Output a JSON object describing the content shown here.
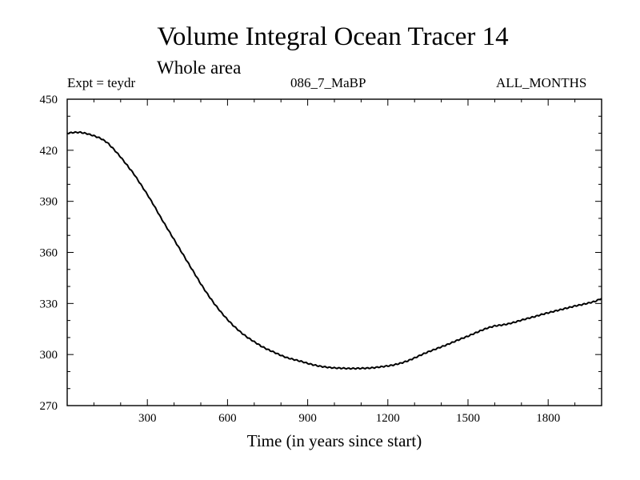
{
  "header": {
    "title": "Volume Integral Ocean Tracer 14",
    "subtitle": "Whole area",
    "expt": "Expt = teydr",
    "run_id": "086_7_MaBP",
    "season": "ALL_MONTHS"
  },
  "chart_data": {
    "type": "line",
    "title": "Volume Integral Ocean Tracer 14",
    "subtitle": "Whole area",
    "xlabel": "Time (in years since start)",
    "ylabel": "",
    "xlim": [
      0,
      2000
    ],
    "ylim": [
      270,
      450
    ],
    "x_ticks": [
      300,
      600,
      900,
      1200,
      1500,
      1800
    ],
    "y_ticks": [
      270,
      300,
      330,
      360,
      390,
      420,
      450
    ],
    "x_tick_labels": [
      "300",
      "600",
      "900",
      "1200",
      "1500",
      "1800"
    ],
    "y_tick_labels": [
      "270",
      "300",
      "330",
      "360",
      "390",
      "420",
      "450"
    ],
    "grid": false,
    "series": [
      {
        "name": "Ocean Tracer 14",
        "x": [
          0,
          25,
          50,
          75,
          100,
          125,
          150,
          175,
          200,
          225,
          250,
          275,
          300,
          325,
          350,
          375,
          400,
          425,
          450,
          475,
          500,
          525,
          550,
          575,
          600,
          625,
          650,
          675,
          700,
          725,
          750,
          775,
          800,
          825,
          850,
          875,
          900,
          925,
          950,
          975,
          1000,
          1025,
          1050,
          1075,
          1100,
          1125,
          1150,
          1175,
          1200,
          1225,
          1250,
          1275,
          1300,
          1325,
          1350,
          1375,
          1400,
          1425,
          1450,
          1475,
          1500,
          1525,
          1550,
          1575,
          1600,
          1625,
          1650,
          1675,
          1700,
          1725,
          1750,
          1775,
          1800,
          1825,
          1850,
          1875,
          1900,
          1925,
          1950,
          1975,
          2000
        ],
        "values": [
          430,
          430.5,
          430.5,
          429.7,
          428.5,
          427,
          424.5,
          420.5,
          416,
          411,
          406,
          400,
          394,
          387.5,
          380.5,
          374,
          367.5,
          361,
          354.5,
          348,
          341.5,
          335.5,
          330,
          325,
          320.5,
          316.5,
          313,
          310,
          307.5,
          305,
          303,
          301.3,
          299.5,
          298,
          297,
          296,
          294.8,
          293.8,
          293,
          292.5,
          292.1,
          292,
          291.8,
          291.8,
          291.9,
          292,
          292.3,
          292.8,
          293.3,
          294,
          295,
          296.3,
          298,
          299.8,
          301.5,
          303,
          304.5,
          306,
          307.7,
          309.3,
          310.8,
          312.5,
          314.2,
          315.7,
          316.8,
          317.3,
          318,
          319,
          320.2,
          321.3,
          322.3,
          323.5,
          324.5,
          325.5,
          326.5,
          327.5,
          328.5,
          329.3,
          330.2,
          331.2,
          333
        ]
      }
    ]
  }
}
